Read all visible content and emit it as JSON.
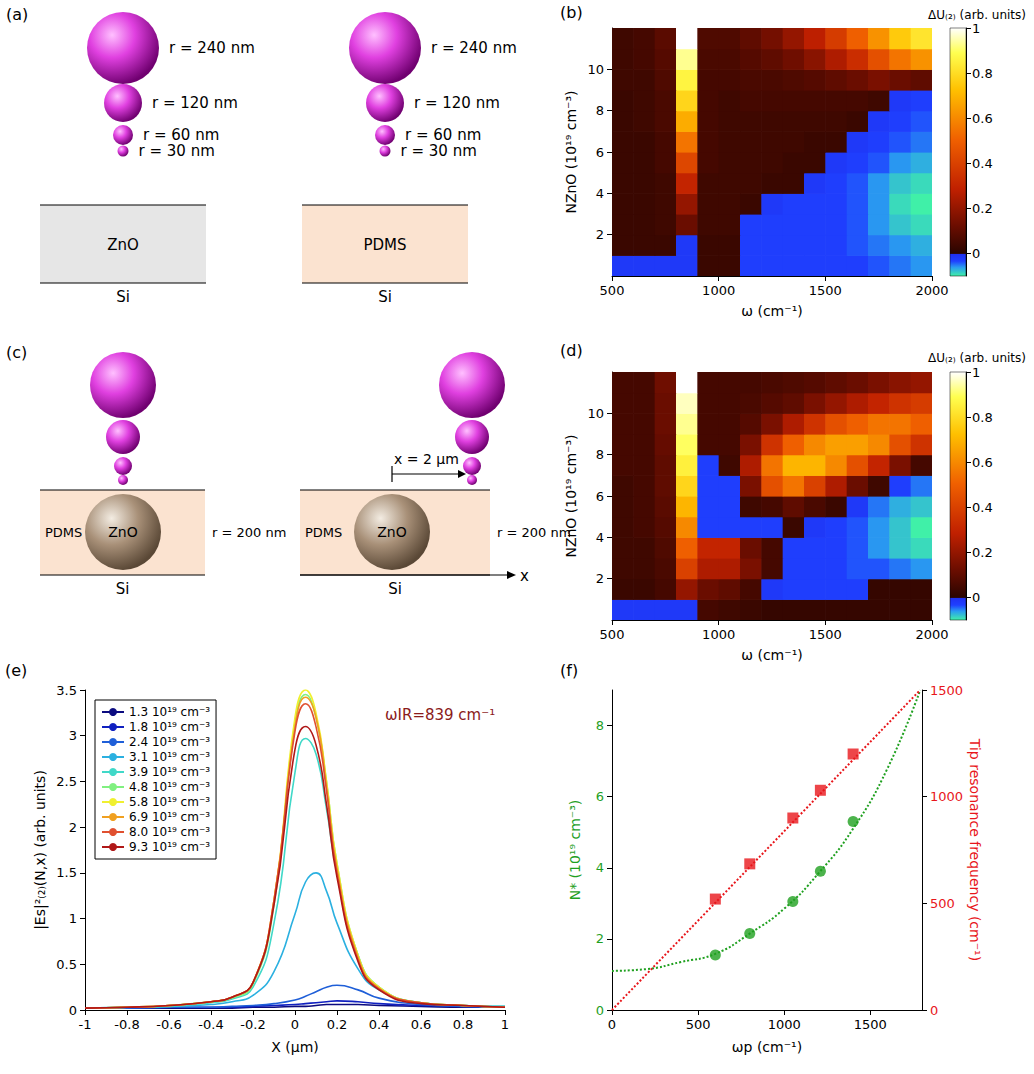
{
  "chart_data": [
    {
      "panel": "(b)",
      "type": "heatmap",
      "x_label": "ω (cm⁻¹)",
      "y_label": "NZnO (10¹⁹ cm⁻³)",
      "x": [
        550,
        650,
        750,
        850,
        950,
        1050,
        1150,
        1250,
        1350,
        1450,
        1550,
        1650,
        1750,
        1850,
        1950
      ],
      "y": [
        0.5,
        1.5,
        2.5,
        3.5,
        4.5,
        5.5,
        6.5,
        7.5,
        8.5,
        9.5,
        10.5,
        11.5
      ],
      "cells": [
        [
          -0.02,
          -0.02,
          -0.02,
          -0.02,
          0.03,
          0.03,
          -0.03,
          -0.03,
          -0.03,
          -0.03,
          -0.03,
          -0.03,
          -0.04,
          -0.05,
          -0.06
        ],
        [
          0.03,
          0.03,
          0.03,
          -0.02,
          0.03,
          0.03,
          -0.03,
          -0.03,
          -0.03,
          -0.03,
          -0.03,
          -0.04,
          -0.05,
          -0.06,
          -0.07
        ],
        [
          0.03,
          0.03,
          0.04,
          0.12,
          0.04,
          0.04,
          -0.03,
          -0.03,
          -0.03,
          -0.03,
          -0.03,
          -0.04,
          -0.06,
          -0.08,
          -0.09
        ],
        [
          0.03,
          0.03,
          0.04,
          0.2,
          0.04,
          0.04,
          0.03,
          -0.02,
          -0.03,
          -0.03,
          -0.03,
          -0.04,
          -0.06,
          -0.09,
          -0.1
        ],
        [
          0.03,
          0.03,
          0.04,
          0.3,
          0.04,
          0.04,
          0.04,
          0.03,
          0.03,
          -0.02,
          -0.03,
          -0.04,
          -0.06,
          -0.08,
          -0.09
        ],
        [
          0.03,
          0.03,
          0.05,
          0.42,
          0.05,
          0.04,
          0.04,
          0.04,
          0.03,
          0.03,
          -0.02,
          -0.03,
          -0.04,
          -0.06,
          -0.07
        ],
        [
          0.03,
          0.03,
          0.05,
          0.55,
          0.05,
          0.04,
          0.04,
          0.04,
          0.04,
          0.03,
          0.03,
          -0.02,
          -0.03,
          -0.04,
          -0.05
        ],
        [
          0.03,
          0.04,
          0.06,
          0.68,
          0.05,
          0.04,
          0.04,
          0.04,
          0.04,
          0.04,
          0.04,
          0.03,
          -0.02,
          -0.03,
          -0.04
        ],
        [
          0.03,
          0.04,
          0.06,
          0.78,
          0.05,
          0.04,
          0.05,
          0.05,
          0.05,
          0.05,
          0.05,
          0.05,
          0.04,
          -0.02,
          -0.03
        ],
        [
          0.04,
          0.04,
          0.07,
          0.86,
          0.05,
          0.05,
          0.06,
          0.06,
          0.07,
          0.08,
          0.1,
          0.12,
          0.15,
          0.12,
          0.1
        ],
        [
          0.04,
          0.05,
          0.08,
          0.93,
          0.06,
          0.06,
          0.08,
          0.1,
          0.13,
          0.18,
          0.25,
          0.33,
          0.45,
          0.55,
          0.62
        ],
        [
          0.04,
          0.05,
          0.09,
          1.0,
          0.07,
          0.07,
          0.1,
          0.14,
          0.2,
          0.28,
          0.38,
          0.5,
          0.62,
          0.75,
          0.82
        ]
      ],
      "xlim": [
        500,
        2000
      ],
      "xticks": [
        500,
        1000,
        1500,
        2000
      ],
      "ylim": [
        0,
        12
      ],
      "yticks": [
        2,
        4,
        6,
        8,
        10
      ],
      "colorbar": {
        "title": "ΔU₍₂₎ (arb. units)",
        "range": [
          -0.1,
          1
        ],
        "ticks": [
          0,
          0.2,
          0.4,
          0.6,
          0.8,
          1
        ]
      },
      "grid": false
    },
    {
      "panel": "(d)",
      "type": "heatmap",
      "x_label": "ω (cm⁻¹)",
      "y_label": "NZnO (10¹⁹ cm⁻³)",
      "x": [
        550,
        650,
        750,
        850,
        950,
        1050,
        1150,
        1250,
        1350,
        1450,
        1550,
        1650,
        1750,
        1850,
        1950
      ],
      "y": [
        0.5,
        1.5,
        2.5,
        3.5,
        4.5,
        5.5,
        6.5,
        7.5,
        8.5,
        9.5,
        10.5,
        11.5
      ],
      "cells": [
        [
          -0.02,
          -0.02,
          -0.02,
          -0.02,
          0.05,
          0.04,
          0.03,
          0.02,
          0.02,
          0.02,
          0.02,
          0.02,
          0.02,
          0.02,
          0.02
        ],
        [
          0.03,
          0.03,
          0.05,
          0.2,
          0.12,
          0.1,
          0.05,
          -0.02,
          -0.03,
          -0.03,
          -0.03,
          -0.03,
          0.02,
          0.02,
          0.02
        ],
        [
          0.04,
          0.04,
          0.06,
          0.4,
          0.25,
          0.25,
          0.15,
          0.05,
          -0.03,
          -0.03,
          -0.03,
          -0.04,
          -0.04,
          -0.05,
          -0.06
        ],
        [
          0.04,
          0.04,
          0.07,
          0.5,
          0.3,
          0.3,
          0.12,
          0.05,
          -0.03,
          -0.03,
          -0.03,
          -0.04,
          -0.06,
          -0.08,
          -0.09
        ],
        [
          0.04,
          0.05,
          0.08,
          0.6,
          -0.03,
          -0.03,
          -0.03,
          -0.03,
          0.03,
          -0.02,
          -0.03,
          -0.04,
          -0.06,
          -0.08,
          -0.1
        ],
        [
          0.04,
          0.05,
          0.09,
          0.7,
          -0.03,
          -0.03,
          0.04,
          0.05,
          0.1,
          0.06,
          0.03,
          -0.02,
          -0.05,
          -0.07,
          -0.08
        ],
        [
          0.04,
          0.05,
          0.1,
          0.78,
          -0.03,
          -0.03,
          0.15,
          0.45,
          0.55,
          0.4,
          0.25,
          0.12,
          0.04,
          -0.03,
          -0.05
        ],
        [
          0.05,
          0.05,
          0.1,
          0.85,
          -0.03,
          0.04,
          0.25,
          0.55,
          0.7,
          0.7,
          0.6,
          0.45,
          0.3,
          0.15,
          0.05
        ],
        [
          0.05,
          0.05,
          0.11,
          0.9,
          0.05,
          0.05,
          0.15,
          0.35,
          0.5,
          0.6,
          0.65,
          0.65,
          0.6,
          0.45,
          0.35
        ],
        [
          0.05,
          0.05,
          0.12,
          0.93,
          0.05,
          0.05,
          0.08,
          0.15,
          0.25,
          0.35,
          0.45,
          0.5,
          0.55,
          0.55,
          0.5
        ],
        [
          0.05,
          0.05,
          0.12,
          0.96,
          0.05,
          0.05,
          0.06,
          0.08,
          0.1,
          0.15,
          0.2,
          0.25,
          0.3,
          0.35,
          0.38
        ],
        [
          0.05,
          0.05,
          0.13,
          1.0,
          0.05,
          0.05,
          0.05,
          0.06,
          0.07,
          0.08,
          0.1,
          0.12,
          0.15,
          0.18,
          0.2
        ]
      ],
      "xlim": [
        500,
        2000
      ],
      "xticks": [
        500,
        1000,
        1500,
        2000
      ],
      "ylim": [
        0,
        12
      ],
      "yticks": [
        2,
        4,
        6,
        8,
        10
      ],
      "colorbar": {
        "title": "ΔU₍₂₎ (arb. units)",
        "range": [
          -0.1,
          1
        ],
        "ticks": [
          0,
          0.2,
          0.4,
          0.6,
          0.8,
          1
        ]
      },
      "grid": false
    },
    {
      "panel": "(e)",
      "type": "line",
      "x_label": "X (μm)",
      "y_label": "|Es|²₍₂₎(N,x) (arb. units)",
      "annotation": "ωIR=839 cm⁻¹",
      "x": [
        -1,
        -0.8,
        -0.6,
        -0.4,
        -0.3,
        -0.2,
        -0.1,
        0,
        0.05,
        0.1,
        0.15,
        0.2,
        0.3,
        0.4,
        0.6,
        0.8,
        1
      ],
      "series": [
        {
          "name": "1.3 10¹⁹ cm⁻³",
          "color": "#0b0b80",
          "values": [
            0.02,
            0.02,
            0.02,
            0.02,
            0.02,
            0.03,
            0.03,
            0.04,
            0.04,
            0.05,
            0.06,
            0.06,
            0.06,
            0.05,
            0.04,
            0.03,
            0.03
          ]
        },
        {
          "name": "1.8 10¹⁹ cm⁻³",
          "color": "#1020c0",
          "values": [
            0.02,
            0.02,
            0.03,
            0.03,
            0.03,
            0.04,
            0.05,
            0.06,
            0.07,
            0.08,
            0.09,
            0.1,
            0.09,
            0.07,
            0.05,
            0.04,
            0.03
          ]
        },
        {
          "name": "2.4 10¹⁹ cm⁻³",
          "color": "#1f5fd8",
          "values": [
            0.02,
            0.02,
            0.03,
            0.03,
            0.04,
            0.05,
            0.07,
            0.11,
            0.15,
            0.2,
            0.25,
            0.27,
            0.22,
            0.13,
            0.06,
            0.04,
            0.03
          ]
        },
        {
          "name": "3.1 10¹⁹ cm⁻³",
          "color": "#2bb0e0",
          "values": [
            0.02,
            0.03,
            0.04,
            0.06,
            0.09,
            0.16,
            0.42,
            1.05,
            1.4,
            1.5,
            1.3,
            0.95,
            0.45,
            0.22,
            0.08,
            0.05,
            0.04
          ]
        },
        {
          "name": "3.9 10¹⁹ cm⁻³",
          "color": "#40d8c8",
          "values": [
            0.02,
            0.03,
            0.04,
            0.08,
            0.12,
            0.25,
            0.95,
            2.6,
            2.97,
            2.8,
            2.2,
            1.5,
            0.6,
            0.25,
            0.08,
            0.05,
            0.04
          ]
        },
        {
          "name": "4.8 10¹⁹ cm⁻³",
          "color": "#80f080",
          "values": [
            0.02,
            0.03,
            0.05,
            0.09,
            0.13,
            0.28,
            1.15,
            3.15,
            3.45,
            3.2,
            2.5,
            1.6,
            0.6,
            0.25,
            0.08,
            0.05,
            0.03
          ]
        },
        {
          "name": "5.8 10¹⁹ cm⁻³",
          "color": "#f0f030",
          "values": [
            0.02,
            0.03,
            0.05,
            0.09,
            0.14,
            0.3,
            1.2,
            3.2,
            3.5,
            3.25,
            2.5,
            1.6,
            0.6,
            0.25,
            0.08,
            0.05,
            0.03
          ]
        },
        {
          "name": "6.9 10¹⁹ cm⁻³",
          "color": "#f0a020",
          "values": [
            0.02,
            0.03,
            0.05,
            0.09,
            0.14,
            0.3,
            1.2,
            3.1,
            3.42,
            3.2,
            2.45,
            1.55,
            0.58,
            0.24,
            0.08,
            0.05,
            0.03
          ]
        },
        {
          "name": "8.0 10¹⁹ cm⁻³",
          "color": "#e05030",
          "values": [
            0.02,
            0.03,
            0.05,
            0.09,
            0.14,
            0.3,
            1.2,
            3.05,
            3.35,
            3.1,
            2.4,
            1.5,
            0.55,
            0.23,
            0.08,
            0.05,
            0.03
          ]
        },
        {
          "name": "9.3 10¹⁹ cm⁻³",
          "color": "#b01818",
          "values": [
            0.02,
            0.03,
            0.05,
            0.09,
            0.14,
            0.3,
            1.15,
            2.85,
            3.1,
            2.9,
            2.25,
            1.45,
            0.53,
            0.22,
            0.07,
            0.05,
            0.03
          ]
        }
      ],
      "xlim": [
        -1,
        1
      ],
      "xticks": [
        -1,
        -0.8,
        -0.6,
        -0.4,
        -0.2,
        0,
        0.2,
        0.4,
        0.6,
        0.8,
        1
      ],
      "ylim": [
        0,
        3.5
      ],
      "yticks": [
        0,
        0.5,
        1,
        1.5,
        2,
        2.5,
        3,
        3.5
      ],
      "legend": "upper left",
      "grid": false
    },
    {
      "panel": "(f)",
      "type": "scatter",
      "x_label": "ωp (cm⁻¹)",
      "y_label": "N* (10¹⁹ cm⁻³)",
      "y2_label": "Tip resonance frequency (cm⁻¹)",
      "xlim": [
        0,
        1800
      ],
      "xticks": [
        0,
        500,
        1000,
        1500
      ],
      "ylim": [
        0,
        9
      ],
      "yticks": [
        0,
        2,
        4,
        6,
        8
      ],
      "y2lim": [
        0,
        1500
      ],
      "y2ticks": [
        0,
        500,
        1000,
        1500
      ],
      "series": [
        {
          "type": "scatter",
          "marker": "circle",
          "color": "#1fa01f",
          "x": [
            600,
            800,
            1050,
            1210,
            1400
          ],
          "values": [
            1.55,
            2.15,
            3.05,
            3.9,
            5.3
          ]
        },
        {
          "type": "line",
          "line_style": "dotted",
          "color": "#1fa01f",
          "x": [
            0,
            200,
            400,
            600,
            800,
            1000,
            1200,
            1400,
            1600,
            1790
          ],
          "values": [
            1.1,
            1.15,
            1.35,
            1.58,
            2.15,
            2.85,
            3.85,
            5.1,
            6.8,
            9
          ]
        },
        {
          "type": "scatter",
          "marker": "square",
          "color": "#e8161b",
          "axis": "y2",
          "x": [
            600,
            800,
            1050,
            1210,
            1400
          ],
          "values": [
            520,
            685,
            900,
            1030,
            1200
          ]
        },
        {
          "type": "line",
          "line_style": "dotted",
          "color": "#e8161b",
          "axis": "y2",
          "x": [
            0,
            1790
          ],
          "values": [
            0,
            1500
          ]
        }
      ],
      "grid": false
    }
  ],
  "diagrams": [
    {
      "panel": "(a)",
      "tip_labels": [
        "r = 240 nm",
        "r = 120 nm",
        "r = 60 nm",
        "r = 30 nm"
      ],
      "layers": [
        "ZnO",
        "PDMS"
      ],
      "substrate": "Si"
    },
    {
      "panel": "(c)",
      "matrix": "PDMS",
      "particle": "ZnO",
      "particle_label": "r = 200 nm",
      "shift_label": "x = 2 μm",
      "axis_label": "x",
      "substrate": "Si"
    }
  ]
}
